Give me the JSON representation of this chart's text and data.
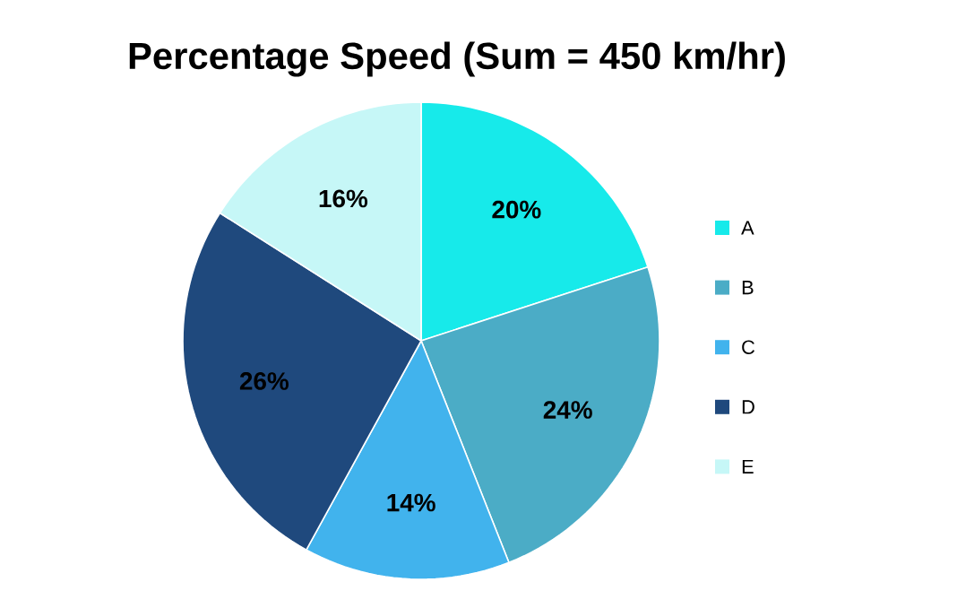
{
  "chart_data": {
    "type": "pie",
    "title": "Percentage Speed (Sum = 450 km/hr)",
    "categories": [
      "A",
      "B",
      "C",
      "D",
      "E"
    ],
    "values": [
      20,
      24,
      14,
      26,
      16
    ],
    "value_labels": [
      "20%",
      "24%",
      "14%",
      "26%",
      "16%"
    ],
    "colors": [
      "#17eaea",
      "#4bacc6",
      "#41b3ed",
      "#1f497d",
      "#c6f7f7"
    ],
    "legend": "right"
  }
}
